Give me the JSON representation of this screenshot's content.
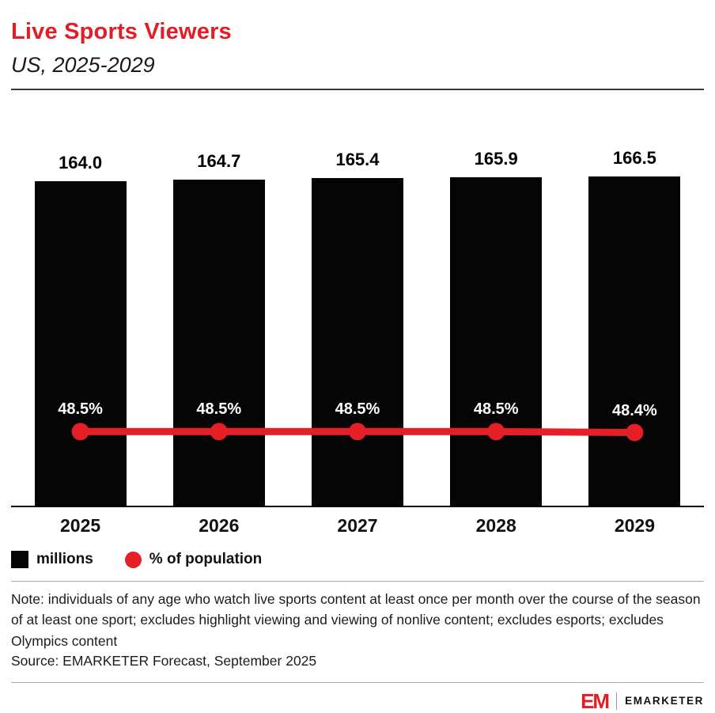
{
  "header": {
    "title": "Live Sports Viewers",
    "subtitle": "US, 2025-2029"
  },
  "chart_data": {
    "type": "bar",
    "categories": [
      "2025",
      "2026",
      "2027",
      "2028",
      "2029"
    ],
    "series": [
      {
        "name": "millions",
        "type": "bar",
        "color": "#050505",
        "values": [
          164.0,
          164.7,
          165.4,
          165.9,
          166.5
        ],
        "labels": [
          "164.0",
          "164.7",
          "165.4",
          "165.9",
          "166.5"
        ]
      },
      {
        "name": "% of population",
        "type": "line",
        "color": "#e61e25",
        "values": [
          48.5,
          48.5,
          48.5,
          48.5,
          48.4
        ],
        "labels": [
          "48.5%",
          "48.5%",
          "48.5%",
          "48.5%",
          "48.4%"
        ]
      }
    ],
    "title": "Live Sports Viewers",
    "xlabel": "",
    "ylabel": "",
    "ylim": [
      0,
      170
    ],
    "y2lim": [
      40,
      78.6
    ],
    "grid": false,
    "legend_position": "bottom-left"
  },
  "footer": {
    "note": "Note: individuals of any age who watch live sports content at least once per month over the course of the season of at least one sport; excludes highlight viewing and viewing of nonlive content; excludes esports; excludes Olympics content",
    "source": "Source: EMARKETER Forecast, September 2025"
  },
  "branding": {
    "logo_text": "EM",
    "name": "EMARKETER",
    "accent_color": "#e21d25"
  }
}
